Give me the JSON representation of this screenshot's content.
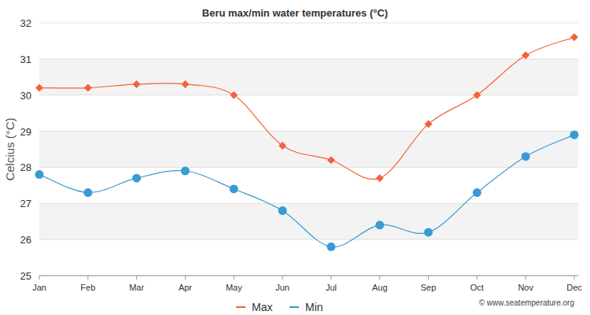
{
  "chart_data": {
    "type": "line",
    "title": "Beru max/min water temperatures (°C)",
    "y_label": "Celcius (°C)",
    "annotations": [
      "© www.seatemperature.org"
    ],
    "categories": [
      "Jan",
      "Feb",
      "Mar",
      "Apr",
      "May",
      "Jun",
      "Jul",
      "Aug",
      "Sep",
      "Oct",
      "Nov",
      "Dec"
    ],
    "series": [
      {
        "name": "Max",
        "color": "#f4623a",
        "marker": "diamond",
        "values": [
          30.2,
          30.2,
          30.3,
          30.3,
          30.0,
          28.6,
          28.2,
          27.7,
          29.2,
          30.0,
          31.1,
          31.6
        ]
      },
      {
        "name": "Min",
        "color": "#3a9ad4",
        "marker": "circle",
        "values": [
          27.8,
          27.3,
          27.7,
          27.9,
          27.4,
          26.8,
          25.8,
          26.4,
          26.2,
          27.3,
          28.3,
          28.9
        ]
      }
    ],
    "ylim": [
      25,
      32
    ],
    "yticks": [
      25,
      26,
      27,
      28,
      29,
      30,
      31,
      32
    ],
    "grid": true,
    "legend": "bottom"
  }
}
